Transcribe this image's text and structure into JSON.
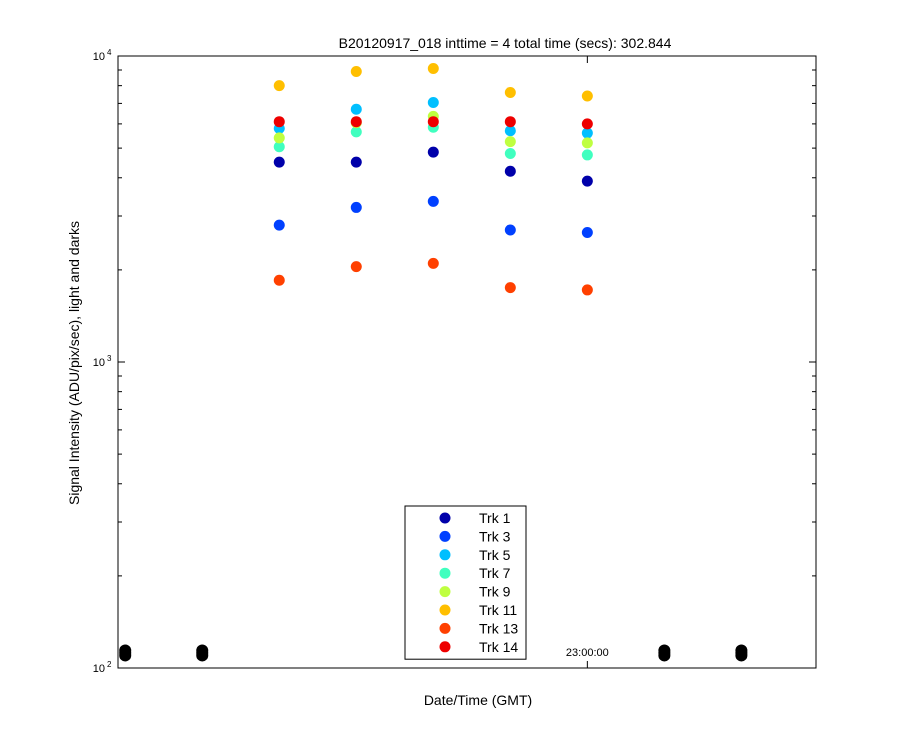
{
  "chart_data": {
    "type": "scatter",
    "title": "B20120917_018 inttime = 4 total time (secs): 302.844",
    "xlabel": "Date/Time (GMT)",
    "ylabel": "Signal Intensity (ADU/pix/sec), light and darks",
    "yscale": "log",
    "ylim": [
      100,
      10000
    ],
    "xlim": [
      "22:56:45",
      "23:01:35"
    ],
    "x_ticks": [
      {
        "value": "23:00:00",
        "label": "23:00:00"
      }
    ],
    "y_ticks": [
      {
        "value": 100,
        "base": "10",
        "exp": "2"
      },
      {
        "value": 1000,
        "base": "10",
        "exp": "3"
      },
      {
        "value": 10000,
        "base": "10",
        "exp": "4"
      }
    ],
    "grid": false,
    "legend_position": "bottom-center",
    "light_times": [
      "22:57:52",
      "22:58:24",
      "22:58:56",
      "22:59:28",
      "23:00:00"
    ],
    "dark_times": [
      "22:56:48",
      "22:57:20",
      "23:00:32",
      "23:01:04"
    ],
    "dark_level": 112,
    "dark_color": "#000000",
    "series": [
      {
        "name": "Trk 1",
        "color": "#0000AA",
        "values": [
          4500,
          4500,
          4850,
          4200,
          3900
        ]
      },
      {
        "name": "Trk 3",
        "color": "#0040FF",
        "values": [
          2800,
          3200,
          3350,
          2700,
          2650
        ]
      },
      {
        "name": "Trk 5",
        "color": "#00BFFF",
        "values": [
          5800,
          6700,
          7050,
          5700,
          5600
        ]
      },
      {
        "name": "Trk 7",
        "color": "#40FFBF",
        "values": [
          5050,
          5650,
          5850,
          4800,
          4750
        ]
      },
      {
        "name": "Trk 9",
        "color": "#BFFF40",
        "values": [
          5400,
          6050,
          6350,
          5250,
          5200
        ]
      },
      {
        "name": "Trk 11",
        "color": "#FFBF00",
        "values": [
          8000,
          8900,
          9100,
          7600,
          7400
        ]
      },
      {
        "name": "Trk 13",
        "color": "#FF4000",
        "values": [
          1850,
          2050,
          2100,
          1750,
          1720
        ]
      },
      {
        "name": "Trk 14",
        "color": "#EE0000",
        "values": [
          6100,
          6100,
          6100,
          6100,
          6000
        ]
      }
    ]
  }
}
